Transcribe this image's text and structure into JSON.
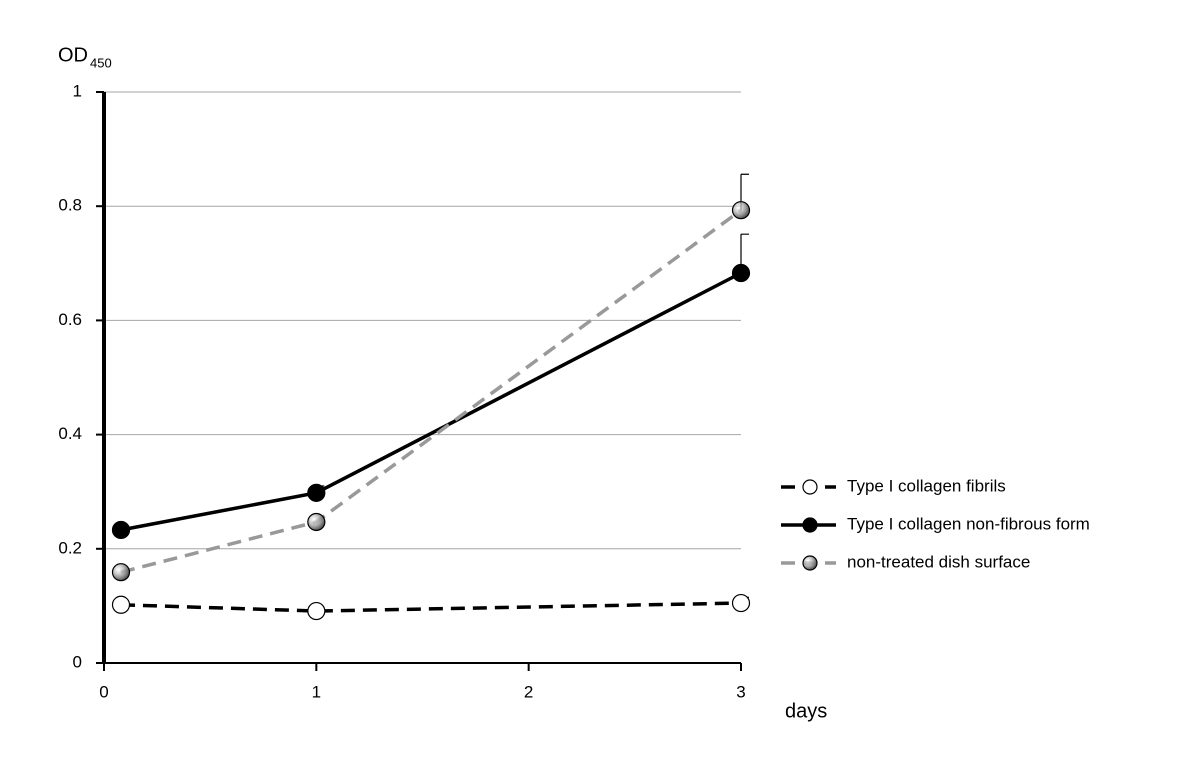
{
  "chart_data": {
    "type": "line",
    "ylabel": "OD",
    "ylabel_sub": "450",
    "xlabel": "days",
    "xlim": [
      0,
      3
    ],
    "xticks": [
      0,
      1,
      2,
      3
    ],
    "ylim": [
      0,
      1
    ],
    "yticks": [
      0,
      0.2,
      0.4,
      0.6,
      0.8,
      1
    ],
    "grid": true,
    "series": [
      {
        "name": "Type I collagen fibrils",
        "color": "#000000",
        "marker_fill": "#ffffff",
        "dashed": true,
        "x": [
          0.08,
          1,
          3
        ],
        "values": [
          0.102,
          0.091,
          0.105
        ],
        "errors": [
          null,
          null,
          0.01
        ]
      },
      {
        "name": "Type I collagen non-fibrous form",
        "color": "#000000",
        "marker_fill": "#000000",
        "dashed": false,
        "x": [
          0.08,
          1,
          3
        ],
        "values": [
          0.233,
          0.298,
          0.683
        ],
        "errors": [
          null,
          0.012,
          0.068
        ]
      },
      {
        "name": "non-treated dish surface",
        "color": "#999999",
        "marker_fill": "#555555",
        "dashed": true,
        "x": [
          0.08,
          1,
          3
        ],
        "values": [
          0.159,
          0.247,
          0.793
        ],
        "errors": [
          null,
          null,
          0.063
        ]
      }
    ]
  }
}
